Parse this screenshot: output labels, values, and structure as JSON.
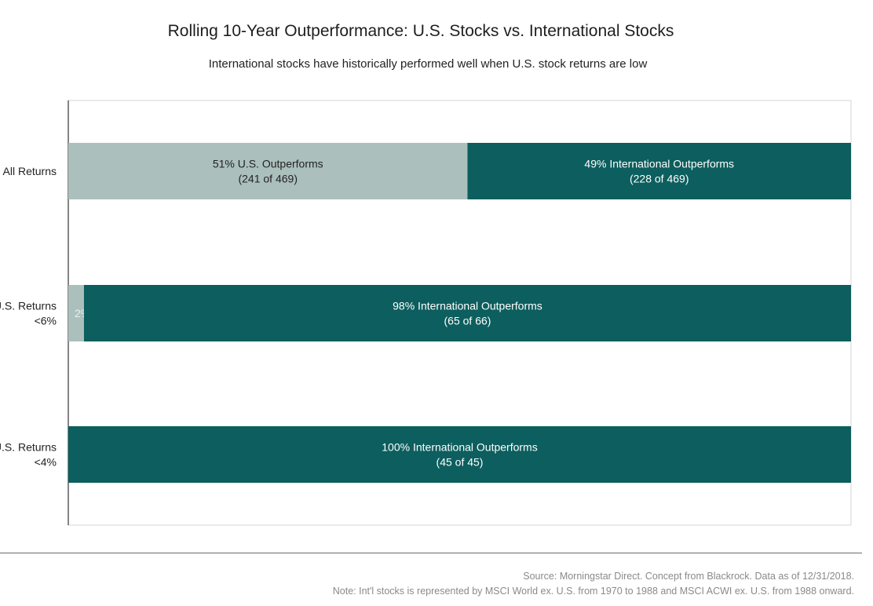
{
  "chart_data": {
    "type": "bar",
    "orientation": "horizontal",
    "stacked": true,
    "title": "Rolling 10-Year Outperformance: U.S. Stocks vs. International Stocks",
    "subtitle": "International stocks have historically performed well when U.S. stock returns are low",
    "categories": [
      [
        "All Returns"
      ],
      [
        "U.S. Returns",
        "<6%"
      ],
      [
        "U.S. Returns",
        "<4%"
      ]
    ],
    "series": [
      {
        "name": "U.S. Outperforms",
        "color": "#abc0bc",
        "values": [
          51,
          2,
          0
        ],
        "labels": [
          [
            "51% U.S. Outperforms",
            "(241 of 469)"
          ],
          [
            "2%"
          ],
          []
        ]
      },
      {
        "name": "International Outperforms",
        "color": "#0d5e5e",
        "values": [
          49,
          98,
          100
        ],
        "labels": [
          [
            "49% International Outperforms",
            "(228 of 469)"
          ],
          [
            "98% International Outperforms",
            "(65 of 66)"
          ],
          [
            "100% International Outperforms",
            "(45 of 45)"
          ]
        ]
      }
    ],
    "xlim": [
      0,
      100
    ],
    "grid": false
  },
  "footer": {
    "source": "Source: Morningstar Direct. Concept from Blackrock. Data as of 12/31/2018.",
    "note": "Note: Int'l stocks is represented by MSCI World ex. U.S. from 1970 to 1988 and MSCI ACWI ex. U.S. from 1988 onward."
  }
}
